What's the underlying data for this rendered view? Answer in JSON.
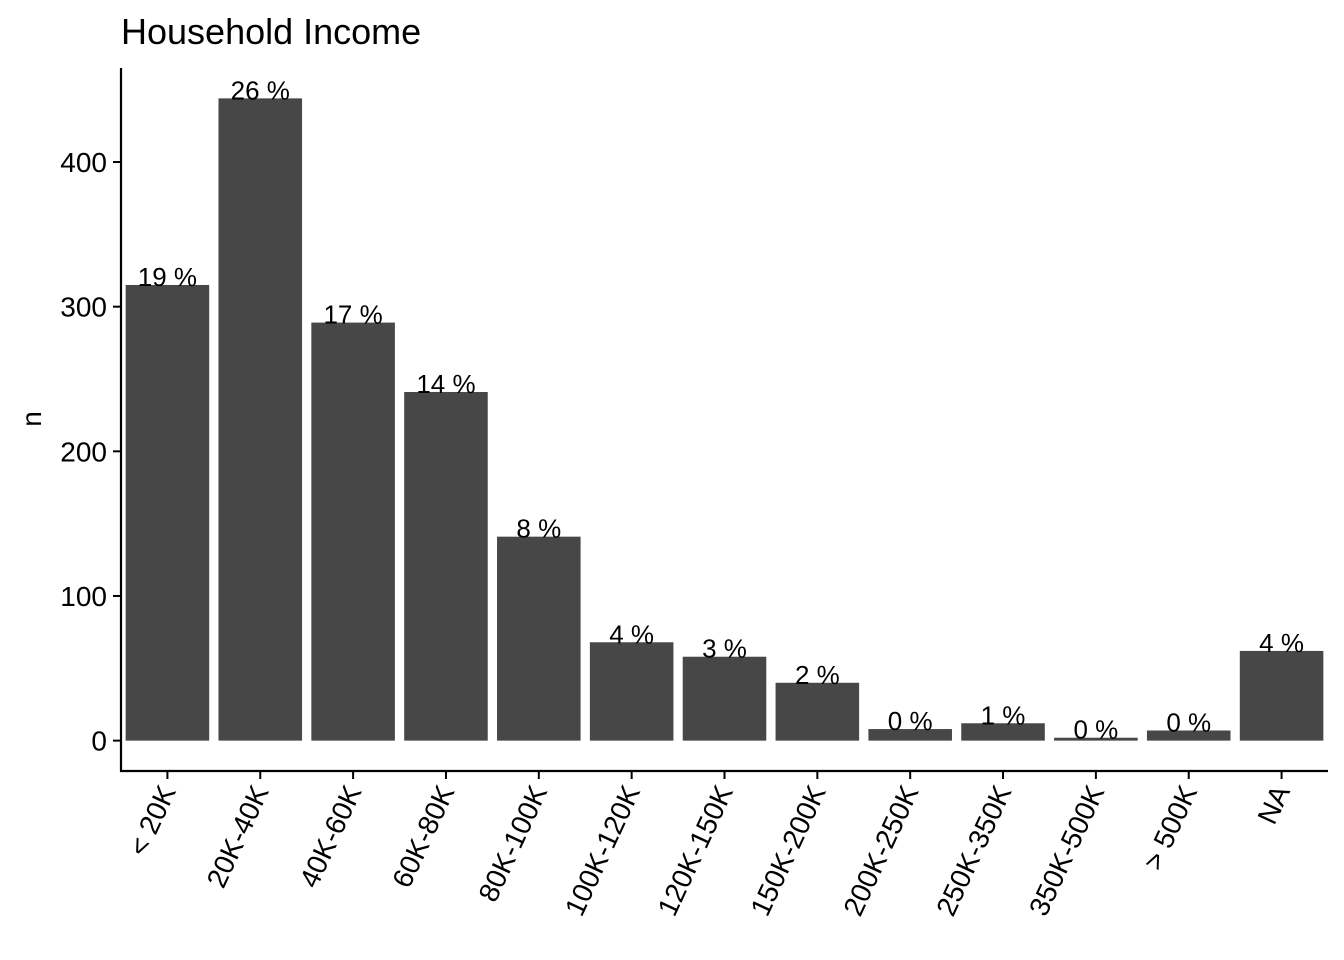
{
  "chart_data": {
    "type": "bar",
    "title": "Household Income",
    "xlabel": "",
    "ylabel": "n",
    "categories": [
      "< 20K",
      "20K-40K",
      "40K-60K",
      "60K-80K",
      "80K-100K",
      "100K-120K",
      "120K-150K",
      "150K-200K",
      "200K-250K",
      "250K-350K",
      "350K-500K",
      "> 500K",
      "NA"
    ],
    "values": [
      315,
      444,
      289,
      241,
      141,
      68,
      58,
      40,
      8,
      12,
      2,
      7,
      62
    ],
    "data_labels": [
      "19 %",
      "26 %",
      "17 %",
      "14 %",
      "8 %",
      "4 %",
      "3 %",
      "2 %",
      "0 %",
      "1 %",
      "0 %",
      "0 %",
      "4 %"
    ],
    "yticks": [
      0,
      100,
      200,
      300,
      400
    ],
    "ylim": [
      -21,
      465
    ],
    "grid": false,
    "legend": "none",
    "bar_color": "#474747"
  }
}
